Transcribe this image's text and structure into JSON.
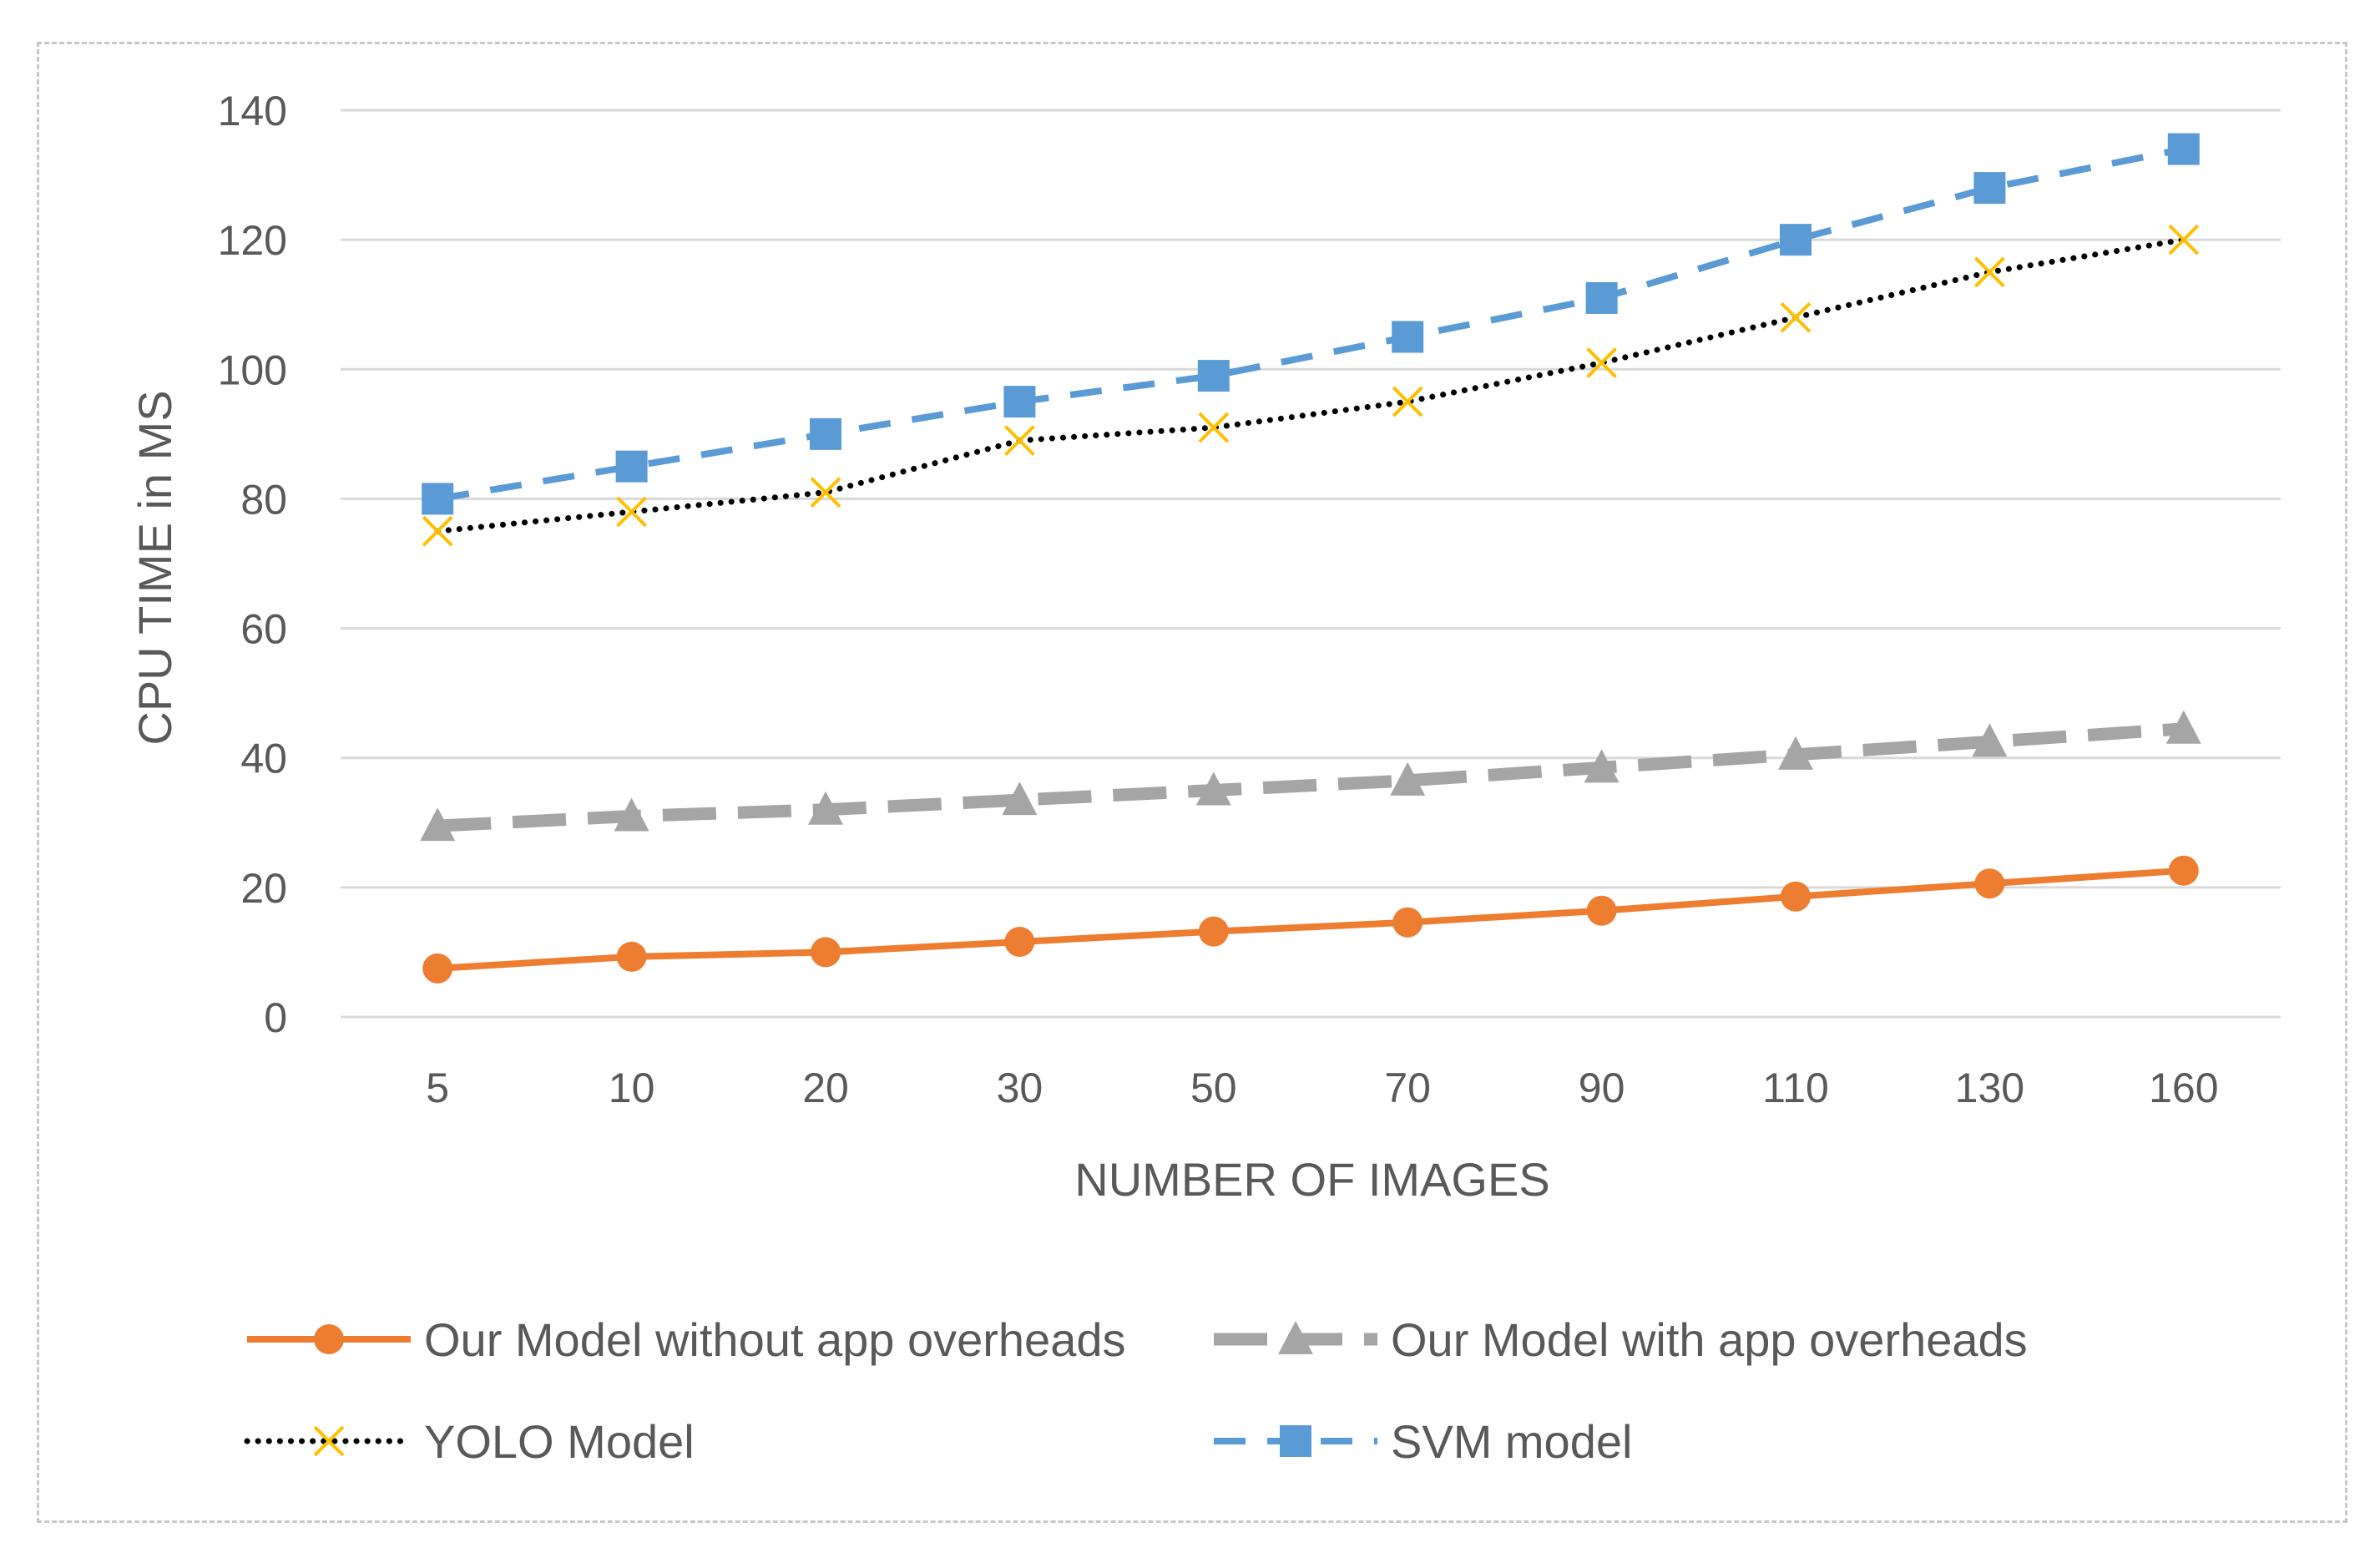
{
  "chart_data": {
    "type": "line",
    "title": "",
    "xlabel": "NUMBER OF IMAGES",
    "ylabel": "CPU TIME in MS",
    "categories": [
      "5",
      "10",
      "20",
      "30",
      "50",
      "70",
      "90",
      "110",
      "130",
      "160"
    ],
    "ylim": [
      0,
      140
    ],
    "yticks": [
      0,
      20,
      40,
      60,
      80,
      100,
      120,
      140
    ],
    "grid": true,
    "legend_position": "bottom",
    "series": [
      {
        "name": "Our Model without app overheads",
        "values": [
          7.5,
          9.3,
          10,
          11.6,
          13.2,
          14.6,
          16.4,
          18.6,
          20.6,
          22.6
        ],
        "color": "#ED7D31",
        "line_style": "solid",
        "marker": "circle"
      },
      {
        "name": "Our Model with app overheads",
        "values": [
          29.5,
          31,
          32,
          33.5,
          35,
          36.5,
          38.5,
          40.5,
          42.5,
          44.5
        ],
        "color": "#A5A5A5",
        "line_style": "long-dash",
        "marker": "triangle"
      },
      {
        "name": "YOLO Model",
        "values": [
          75,
          78,
          81,
          89,
          91,
          95,
          101,
          108,
          115,
          120
        ],
        "color": "#000000",
        "marker_color": "#FFC000",
        "line_style": "dotted",
        "marker": "x"
      },
      {
        "name": "SVM model",
        "values": [
          80,
          85,
          90,
          95,
          99,
          105,
          111,
          120,
          128,
          134
        ],
        "color": "#5B9BD5",
        "line_style": "dashed",
        "marker": "square"
      }
    ]
  }
}
